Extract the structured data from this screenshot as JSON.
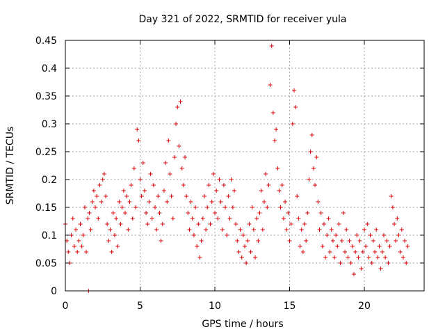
{
  "colors": {
    "series": "#e00000",
    "grid": "#a0a0a0",
    "axis": "#000000",
    "background": "#ffffff"
  },
  "chart_data": {
    "type": "scatter",
    "title": "Day 321 of 2022, SRMTID for receiver yula",
    "xlabel": "GPS time / hours",
    "ylabel": "SRMTID / TECUs",
    "xlim": [
      0,
      24.0
    ],
    "ylim": [
      0,
      0.45
    ],
    "grid": true,
    "marker": "+",
    "x_ticks": [
      {
        "value": 0,
        "label": "0"
      },
      {
        "value": 5,
        "label": "5"
      },
      {
        "value": 10,
        "label": "10"
      },
      {
        "value": 15,
        "label": "15"
      },
      {
        "value": 20,
        "label": "20"
      }
    ],
    "y_ticks": [
      {
        "value": 0,
        "label": "0"
      },
      {
        "value": 0.05,
        "label": "0.05"
      },
      {
        "value": 0.1,
        "label": "0.1"
      },
      {
        "value": 0.15,
        "label": "0.15"
      },
      {
        "value": 0.2,
        "label": "0.2"
      },
      {
        "value": 0.25,
        "label": "0.25"
      },
      {
        "value": 0.3,
        "label": "0.3"
      },
      {
        "value": 0.35,
        "label": "0.35"
      },
      {
        "value": 0.4,
        "label": "0.4"
      },
      {
        "value": 0.45,
        "label": "0.45"
      }
    ],
    "series": [
      {
        "name": "SRMTID",
        "points": [
          [
            0.0,
            0.12
          ],
          [
            0.1,
            0.09
          ],
          [
            0.2,
            0.07
          ],
          [
            0.3,
            0.05
          ],
          [
            0.4,
            0.1
          ],
          [
            0.5,
            0.13
          ],
          [
            0.6,
            0.08
          ],
          [
            0.7,
            0.11
          ],
          [
            0.8,
            0.07
          ],
          [
            0.9,
            0.09
          ],
          [
            1.0,
            0.12
          ],
          [
            1.1,
            0.08
          ],
          [
            1.2,
            0.1
          ],
          [
            1.3,
            0.15
          ],
          [
            1.4,
            0.07
          ],
          [
            1.5,
            0.13
          ],
          [
            1.6,
            0.14
          ],
          [
            1.7,
            0.11
          ],
          [
            1.8,
            0.16
          ],
          [
            1.9,
            0.18
          ],
          [
            2.0,
            0.15
          ],
          [
            2.1,
            0.17
          ],
          [
            2.2,
            0.13
          ],
          [
            2.3,
            0.19
          ],
          [
            2.4,
            0.16
          ],
          [
            2.5,
            0.2
          ],
          [
            2.6,
            0.21
          ],
          [
            2.7,
            0.17
          ],
          [
            2.8,
            0.12
          ],
          [
            2.9,
            0.09
          ],
          [
            3.0,
            0.11
          ],
          [
            3.1,
            0.07
          ],
          [
            3.2,
            0.14
          ],
          [
            3.3,
            0.1
          ],
          [
            3.4,
            0.13
          ],
          [
            3.5,
            0.08
          ],
          [
            3.6,
            0.16
          ],
          [
            3.7,
            0.12
          ],
          [
            3.8,
            0.15
          ],
          [
            3.9,
            0.18
          ],
          [
            4.0,
            0.14
          ],
          [
            4.1,
            0.17
          ],
          [
            4.2,
            0.11
          ],
          [
            4.3,
            0.16
          ],
          [
            4.4,
            0.19
          ],
          [
            4.5,
            0.13
          ],
          [
            4.6,
            0.22
          ],
          [
            4.7,
            0.15
          ],
          [
            4.8,
            0.29
          ],
          [
            4.9,
            0.27
          ],
          [
            5.0,
            0.2
          ],
          [
            5.1,
            0.17
          ],
          [
            5.2,
            0.23
          ],
          [
            5.3,
            0.18
          ],
          [
            5.4,
            0.14
          ],
          [
            5.5,
            0.12
          ],
          [
            5.6,
            0.16
          ],
          [
            5.7,
            0.21
          ],
          [
            5.8,
            0.13
          ],
          [
            5.9,
            0.19
          ],
          [
            6.0,
            0.15
          ],
          [
            6.1,
            0.11
          ],
          [
            6.2,
            0.17
          ],
          [
            6.3,
            0.14
          ],
          [
            6.4,
            0.09
          ],
          [
            6.5,
            0.12
          ],
          [
            6.6,
            0.18
          ],
          [
            6.7,
            0.23
          ],
          [
            6.8,
            0.16
          ],
          [
            6.9,
            0.27
          ],
          [
            7.0,
            0.21
          ],
          [
            7.1,
            0.17
          ],
          [
            7.2,
            0.13
          ],
          [
            7.3,
            0.24
          ],
          [
            7.4,
            0.3
          ],
          [
            7.5,
            0.33
          ],
          [
            7.6,
            0.26
          ],
          [
            7.7,
            0.34
          ],
          [
            7.8,
            0.22
          ],
          [
            7.9,
            0.19
          ],
          [
            8.0,
            0.24
          ],
          [
            8.1,
            0.17
          ],
          [
            8.2,
            0.14
          ],
          [
            8.3,
            0.11
          ],
          [
            8.4,
            0.16
          ],
          [
            8.5,
            0.13
          ],
          [
            8.6,
            0.1
          ],
          [
            8.7,
            0.15
          ],
          [
            8.8,
            0.08
          ],
          [
            8.9,
            0.12
          ],
          [
            9.0,
            0.06
          ],
          [
            9.1,
            0.09
          ],
          [
            9.2,
            0.13
          ],
          [
            9.3,
            0.17
          ],
          [
            9.4,
            0.11
          ],
          [
            9.5,
            0.15
          ],
          [
            9.6,
            0.19
          ],
          [
            9.7,
            0.12
          ],
          [
            9.8,
            0.16
          ],
          [
            9.9,
            0.21
          ],
          [
            10.0,
            0.14
          ],
          [
            10.1,
            0.18
          ],
          [
            10.2,
            0.13
          ],
          [
            10.3,
            0.2
          ],
          [
            10.4,
            0.16
          ],
          [
            10.5,
            0.11
          ],
          [
            10.6,
            0.19
          ],
          [
            10.7,
            0.15
          ],
          [
            10.8,
            0.1
          ],
          [
            10.9,
            0.17
          ],
          [
            11.0,
            0.13
          ],
          [
            11.1,
            0.2
          ],
          [
            11.2,
            0.15
          ],
          [
            11.3,
            0.18
          ],
          [
            11.4,
            0.12
          ],
          [
            11.5,
            0.09
          ],
          [
            11.6,
            0.07
          ],
          [
            11.7,
            0.11
          ],
          [
            11.8,
            0.06
          ],
          [
            11.9,
            0.1
          ],
          [
            12.0,
            0.08
          ],
          [
            12.1,
            0.05
          ],
          [
            12.2,
            0.09
          ],
          [
            12.3,
            0.12
          ],
          [
            12.4,
            0.07
          ],
          [
            12.5,
            0.15
          ],
          [
            12.6,
            0.11
          ],
          [
            12.7,
            0.06
          ],
          [
            12.8,
            0.13
          ],
          [
            12.9,
            0.09
          ],
          [
            13.0,
            0.14
          ],
          [
            13.1,
            0.18
          ],
          [
            13.2,
            0.11
          ],
          [
            13.3,
            0.16
          ],
          [
            13.4,
            0.21
          ],
          [
            13.5,
            0.15
          ],
          [
            13.6,
            0.19
          ],
          [
            13.7,
            0.37
          ],
          [
            13.8,
            0.44
          ],
          [
            13.9,
            0.32
          ],
          [
            14.0,
            0.27
          ],
          [
            14.1,
            0.29
          ],
          [
            14.2,
            0.22
          ],
          [
            14.3,
            0.18
          ],
          [
            14.4,
            0.15
          ],
          [
            14.5,
            0.19
          ],
          [
            14.6,
            0.13
          ],
          [
            14.7,
            0.16
          ],
          [
            14.8,
            0.11
          ],
          [
            14.9,
            0.14
          ],
          [
            15.0,
            0.09
          ],
          [
            15.1,
            0.12
          ],
          [
            15.2,
            0.3
          ],
          [
            15.3,
            0.36
          ],
          [
            15.4,
            0.33
          ],
          [
            15.5,
            0.17
          ],
          [
            15.6,
            0.13
          ],
          [
            15.7,
            0.08
          ],
          [
            15.8,
            0.11
          ],
          [
            15.9,
            0.07
          ],
          [
            16.0,
            0.12
          ],
          [
            16.1,
            0.09
          ],
          [
            16.2,
            0.14
          ],
          [
            16.3,
            0.2
          ],
          [
            16.4,
            0.25
          ],
          [
            16.5,
            0.28
          ],
          [
            16.6,
            0.22
          ],
          [
            16.7,
            0.19
          ],
          [
            16.8,
            0.24
          ],
          [
            16.9,
            0.16
          ],
          [
            17.0,
            0.11
          ],
          [
            17.1,
            0.14
          ],
          [
            17.2,
            0.08
          ],
          [
            17.3,
            0.12
          ],
          [
            17.4,
            0.06
          ],
          [
            17.5,
            0.1
          ],
          [
            17.6,
            0.13
          ],
          [
            17.7,
            0.07
          ],
          [
            17.8,
            0.11
          ],
          [
            17.9,
            0.09
          ],
          [
            18.0,
            0.06
          ],
          [
            18.1,
            0.1
          ],
          [
            18.2,
            0.08
          ],
          [
            18.3,
            0.12
          ],
          [
            18.4,
            0.05
          ],
          [
            18.5,
            0.09
          ],
          [
            18.6,
            0.14
          ],
          [
            18.7,
            0.07
          ],
          [
            18.8,
            0.11
          ],
          [
            18.9,
            0.06
          ],
          [
            19.0,
            0.09
          ],
          [
            19.1,
            0.05
          ],
          [
            19.2,
            0.08
          ],
          [
            19.3,
            0.03
          ],
          [
            19.4,
            0.07
          ],
          [
            19.5,
            0.1
          ],
          [
            19.6,
            0.06
          ],
          [
            19.7,
            0.09
          ],
          [
            19.8,
            0.04
          ],
          [
            19.9,
            0.07
          ],
          [
            20.0,
            0.11
          ],
          [
            20.1,
            0.08
          ],
          [
            20.2,
            0.12
          ],
          [
            20.3,
            0.06
          ],
          [
            20.4,
            0.1
          ],
          [
            20.5,
            0.05
          ],
          [
            20.6,
            0.09
          ],
          [
            20.7,
            0.07
          ],
          [
            20.8,
            0.11
          ],
          [
            20.9,
            0.06
          ],
          [
            21.0,
            0.08
          ],
          [
            21.1,
            0.04
          ],
          [
            21.2,
            0.07
          ],
          [
            21.3,
            0.1
          ],
          [
            21.4,
            0.06
          ],
          [
            21.5,
            0.09
          ],
          [
            21.6,
            0.05
          ],
          [
            21.7,
            0.08
          ],
          [
            21.8,
            0.17
          ],
          [
            21.9,
            0.15
          ],
          [
            22.0,
            0.12
          ],
          [
            22.1,
            0.09
          ],
          [
            22.2,
            0.13
          ],
          [
            22.3,
            0.1
          ],
          [
            22.4,
            0.07
          ],
          [
            22.5,
            0.11
          ],
          [
            22.6,
            0.06
          ],
          [
            22.7,
            0.09
          ],
          [
            22.8,
            0.05
          ],
          [
            22.9,
            0.08
          ],
          [
            1.55,
            0.0
          ]
        ]
      }
    ]
  }
}
